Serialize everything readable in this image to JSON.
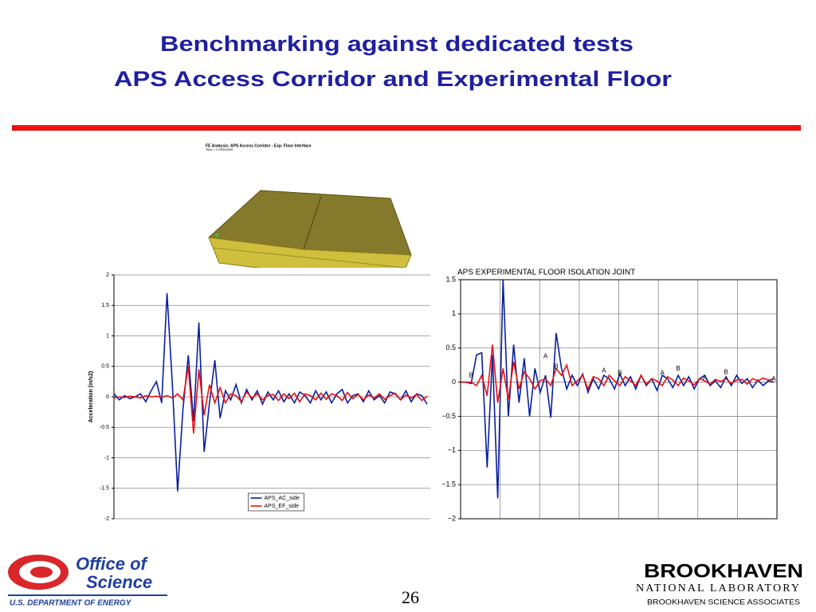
{
  "header": {
    "title_line1": "Benchmarking against dedicated tests",
    "title_line2": "APS Access Corridor and Experimental Floor"
  },
  "model": {
    "caption": "FE Analysis: APS Access Corridor - Exp. Floor Interface",
    "time": "Time =  0.00000000"
  },
  "chart_data": [
    {
      "type": "line",
      "y_label": "Acceleration (in/s2)",
      "ylim": [
        -2,
        2
      ],
      "yticks": [
        -2,
        -1.5,
        -1,
        -0.5,
        0,
        0.5,
        1,
        1.5,
        2
      ],
      "grid": true,
      "legend": "bottom",
      "series": [
        {
          "name": "APS_AC_side",
          "color": "#0a1ea0",
          "values": [
            0.05,
            -0.05,
            0.02,
            -0.03,
            0,
            0.05,
            -0.08,
            0.1,
            0.25,
            -0.1,
            1.7,
            0.2,
            -1.55,
            -0.2,
            0.68,
            -0.4,
            1.22,
            -0.9,
            -0.1,
            0.6,
            -0.35,
            0.1,
            -0.05,
            0.2,
            -0.1,
            0.12,
            -0.05,
            0.1,
            -0.12,
            0.08,
            -0.05,
            0.1,
            -0.08,
            0.05,
            -0.1,
            0.08,
            0.02,
            -0.1,
            0.1,
            -0.05,
            0.08,
            -0.1,
            0.05,
            0.12,
            -0.1,
            0.02,
            0.05,
            -0.08,
            0.1,
            -0.05,
            0.02,
            -0.1,
            0.08,
            0.05,
            -0.05,
            0.1,
            -0.08,
            0.05,
            0.02,
            -0.12
          ]
        },
        {
          "name": "APS_EF_side",
          "color": "#e81010",
          "values": [
            -0.02,
            0,
            -0.01,
            0.01,
            0,
            -0.02,
            0.02,
            0,
            0.01,
            -0.01,
            0.02,
            -0.02,
            0.05,
            -0.05,
            0.5,
            -0.6,
            0.45,
            -0.3,
            0.2,
            -0.1,
            0.15,
            -0.1,
            0.05,
            0.02,
            -0.08,
            0.08,
            -0.02,
            0.05,
            -0.05,
            0.02,
            0.04,
            -0.06,
            0.05,
            -0.03,
            0.06,
            -0.08,
            0.05,
            0.02,
            -0.05,
            0.06,
            -0.04,
            0.05,
            0.02,
            -0.06,
            0.07,
            -0.03,
            0.04,
            -0.05,
            0.03,
            -0.02,
            0.05,
            -0.04,
            0.02,
            0.06,
            -0.05,
            0.03,
            -0.02,
            0.04,
            -0.06,
            0.01
          ]
        }
      ]
    },
    {
      "type": "line",
      "title": "APS EXPERIMENTAL FLOOR ISOLATION JOINT",
      "ylim": [
        -2,
        1.5
      ],
      "yticks": [
        {
          "value": -2,
          "label": "−2"
        },
        {
          "value": -1.5,
          "label": "−1.5"
        },
        {
          "value": -1,
          "label": "−1"
        },
        {
          "value": -0.5,
          "label": "−0.5"
        },
        0,
        0.5,
        1,
        1.5
      ],
      "grid": true,
      "series": [
        {
          "color": "#0a1ea0",
          "values": [
            0,
            0,
            -0.02,
            0.4,
            0.43,
            -1.25,
            0.4,
            -1.7,
            1.5,
            -0.5,
            0.55,
            -0.3,
            0.35,
            -0.5,
            0.2,
            -0.15,
            0.1,
            -0.52,
            0.72,
            0.2,
            -0.1,
            0.1,
            -0.05,
            0.12,
            -0.15,
            0.05,
            -0.1,
            0.1,
            0.05,
            -0.1,
            0.12,
            -0.05,
            0.08,
            -0.1,
            0.1,
            -0.05,
            0.05,
            -0.12,
            0.1,
            0.05,
            -0.08,
            0.1,
            -0.05,
            0.08,
            -0.1,
            0.05,
            0.1,
            -0.05,
            0.02,
            -0.08,
            0.08,
            -0.05,
            0.1,
            -0.02,
            0.05,
            -0.08,
            0.03,
            -0.05,
            0.02,
            0
          ]
        },
        {
          "color": "#e81010",
          "values": [
            0,
            0,
            0,
            -0.05,
            0.1,
            -0.2,
            0.55,
            -0.3,
            0.2,
            -0.25,
            0.3,
            -0.1,
            0.15,
            0.05,
            -0.1,
            0.02,
            0.05,
            -0.05,
            0.2,
            0.1,
            0.25,
            -0.05,
            0.02,
            0.1,
            -0.1,
            0.08,
            0.05,
            -0.05,
            0.1,
            0.02,
            -0.05,
            0.08,
            0.02,
            -0.05,
            0.1,
            -0.03,
            0.05,
            0.02,
            -0.05,
            0.08,
            0.03,
            -0.05,
            0.06,
            0.02,
            -0.04,
            0.05,
            0.02,
            -0.03,
            0.04,
            0.01,
            0.05,
            -0.02,
            0.03,
            0.04,
            -0.03,
            0.05,
            0.02,
            0.06,
            0.03,
            0.05
          ]
        }
      ],
      "annotations": [
        {
          "text": "B",
          "x": 2,
          "y": 0
        },
        {
          "text": "A",
          "x": 16,
          "y": 0.28
        },
        {
          "text": "B",
          "x": 18,
          "y": 0.13
        },
        {
          "text": "A",
          "x": 27,
          "y": 0.07
        },
        {
          "text": "B",
          "x": 30,
          "y": 0.04
        },
        {
          "text": "A",
          "x": 38,
          "y": 0.04
        },
        {
          "text": "B",
          "x": 41,
          "y": 0.1
        },
        {
          "text": "A",
          "x": 46,
          "y": -0.03
        },
        {
          "text": "B",
          "x": 50,
          "y": 0.05
        },
        {
          "text": "A",
          "x": 59,
          "y": -0.05
        }
      ]
    }
  ],
  "footer": {
    "doe_line1": "Office of",
    "doe_line2": "Science",
    "doe_line3": "U.S. DEPARTMENT OF ENERGY",
    "page": "26",
    "bnl_line1": "BROOKHAVEN",
    "bnl_line2": "NATIONAL LABORATORY",
    "bnl_line3": "BROOKHAVEN SCIENCE ASSOCIATES"
  }
}
